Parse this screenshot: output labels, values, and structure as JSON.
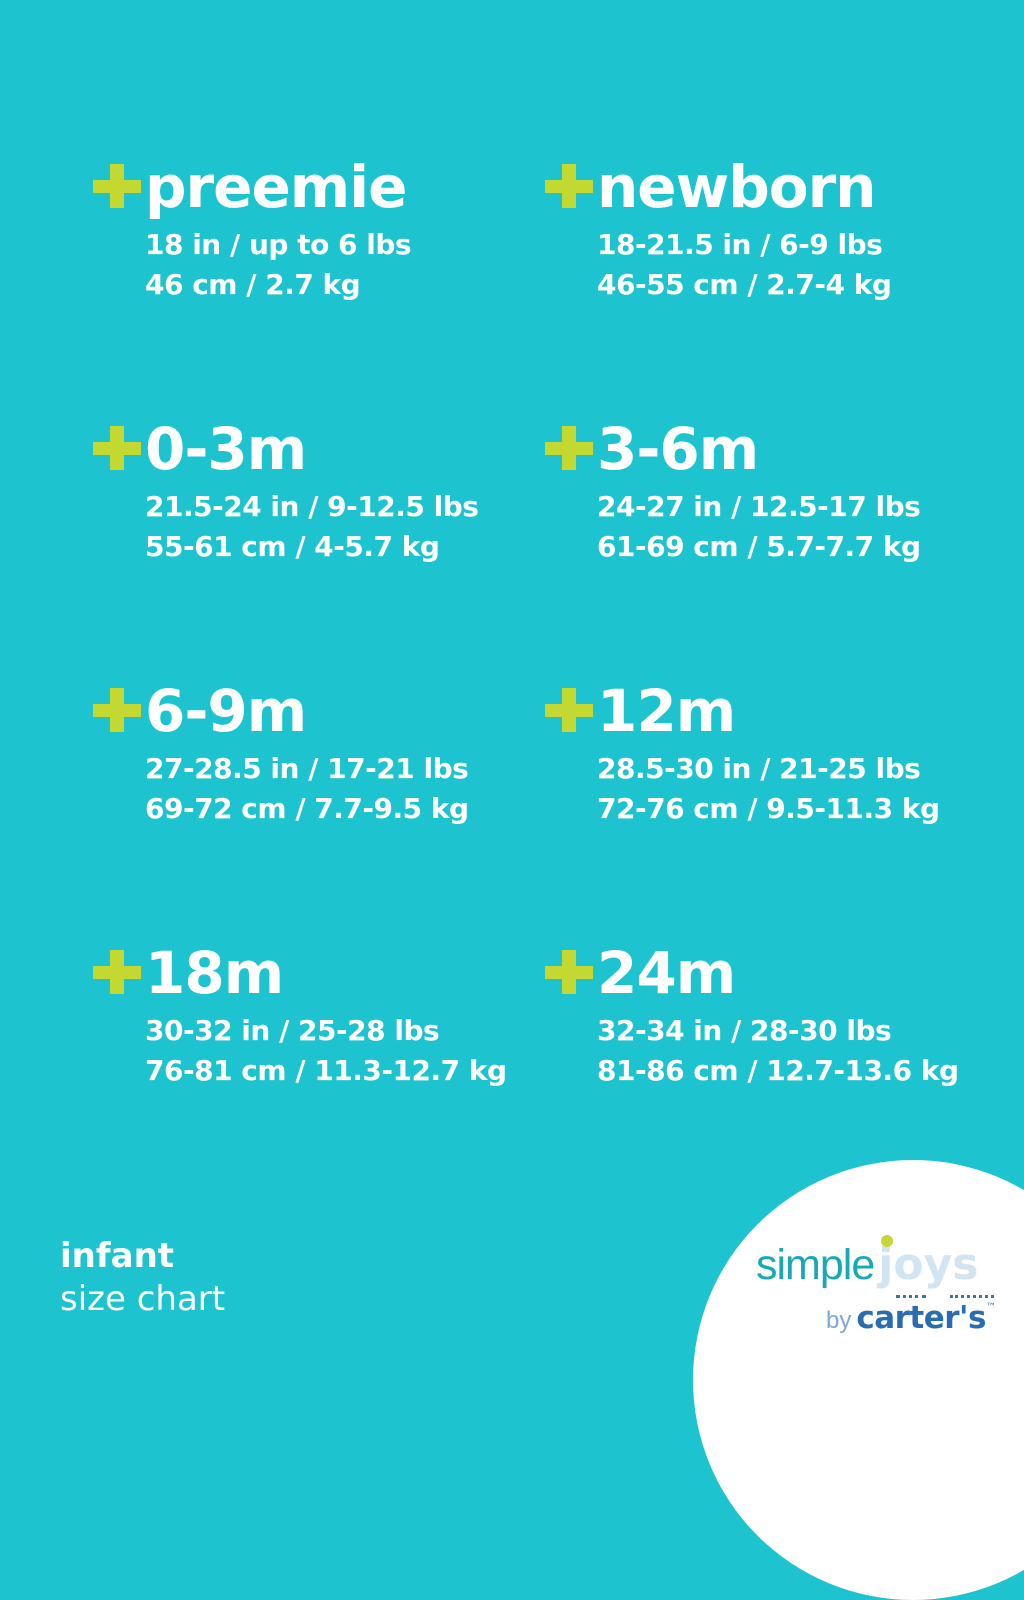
{
  "theme": {
    "colors": {
      "bg": "#1dc4cf",
      "plus": "#c4d832",
      "text": "#ffffff",
      "simple": "#19a9b6",
      "joys": "#d2e4f1",
      "by": "#7fa8d3",
      "carters": "#2a6cb0",
      "jdot": "#c4d832",
      "underline-dots": "#35799e"
    }
  },
  "sizes": [
    {
      "label": "preemie",
      "imperial": "18 in / up to 6 lbs",
      "metric": "46 cm / 2.7 kg"
    },
    {
      "label": "newborn",
      "imperial": "18-21.5 in / 6-9 lbs",
      "metric": "46-55 cm / 2.7-4 kg"
    },
    {
      "label": "0-3m",
      "imperial": "21.5-24 in / 9-12.5 lbs",
      "metric": "55-61 cm / 4-5.7 kg"
    },
    {
      "label": "3-6m",
      "imperial": "24-27 in / 12.5-17 lbs",
      "metric": "61-69 cm / 5.7-7.7 kg"
    },
    {
      "label": "6-9m",
      "imperial": "27-28.5 in / 17-21 lbs",
      "metric": "69-72 cm / 7.7-9.5 kg"
    },
    {
      "label": "12m",
      "imperial": "28.5-30 in / 21-25 lbs",
      "metric": "72-76 cm / 9.5-11.3 kg"
    },
    {
      "label": "18m",
      "imperial": "30-32 in / 25-28 lbs",
      "metric": "76-81 cm / 11.3-12.7 kg"
    },
    {
      "label": "24m",
      "imperial": "32-34 in / 28-30 lbs",
      "metric": "81-86 cm / 12.7-13.6 kg"
    }
  ],
  "footer": {
    "category": "infant",
    "subtitle": "size chart"
  },
  "logo": {
    "simple": "simple",
    "joys": "joys",
    "by": "by",
    "brand": "carter's",
    "trademark": "™"
  },
  "chart_data": {
    "type": "table",
    "title": "infant size chart",
    "columns": [
      "size",
      "height_in",
      "weight_lbs",
      "height_cm",
      "weight_kg"
    ],
    "rows": [
      [
        "preemie",
        "18",
        "up to 6",
        "46",
        "2.7"
      ],
      [
        "newborn",
        "18-21.5",
        "6-9",
        "46-55",
        "2.7-4"
      ],
      [
        "0-3m",
        "21.5-24",
        "9-12.5",
        "55-61",
        "4-5.7"
      ],
      [
        "3-6m",
        "24-27",
        "12.5-17",
        "61-69",
        "5.7-7.7"
      ],
      [
        "6-9m",
        "27-28.5",
        "17-21",
        "69-72",
        "7.7-9.5"
      ],
      [
        "12m",
        "28.5-30",
        "21-25",
        "72-76",
        "9.5-11.3"
      ],
      [
        "18m",
        "30-32",
        "25-28",
        "76-81",
        "11.3-12.7"
      ],
      [
        "24m",
        "32-34",
        "28-30",
        "81-86",
        "12.7-13.6"
      ]
    ]
  }
}
